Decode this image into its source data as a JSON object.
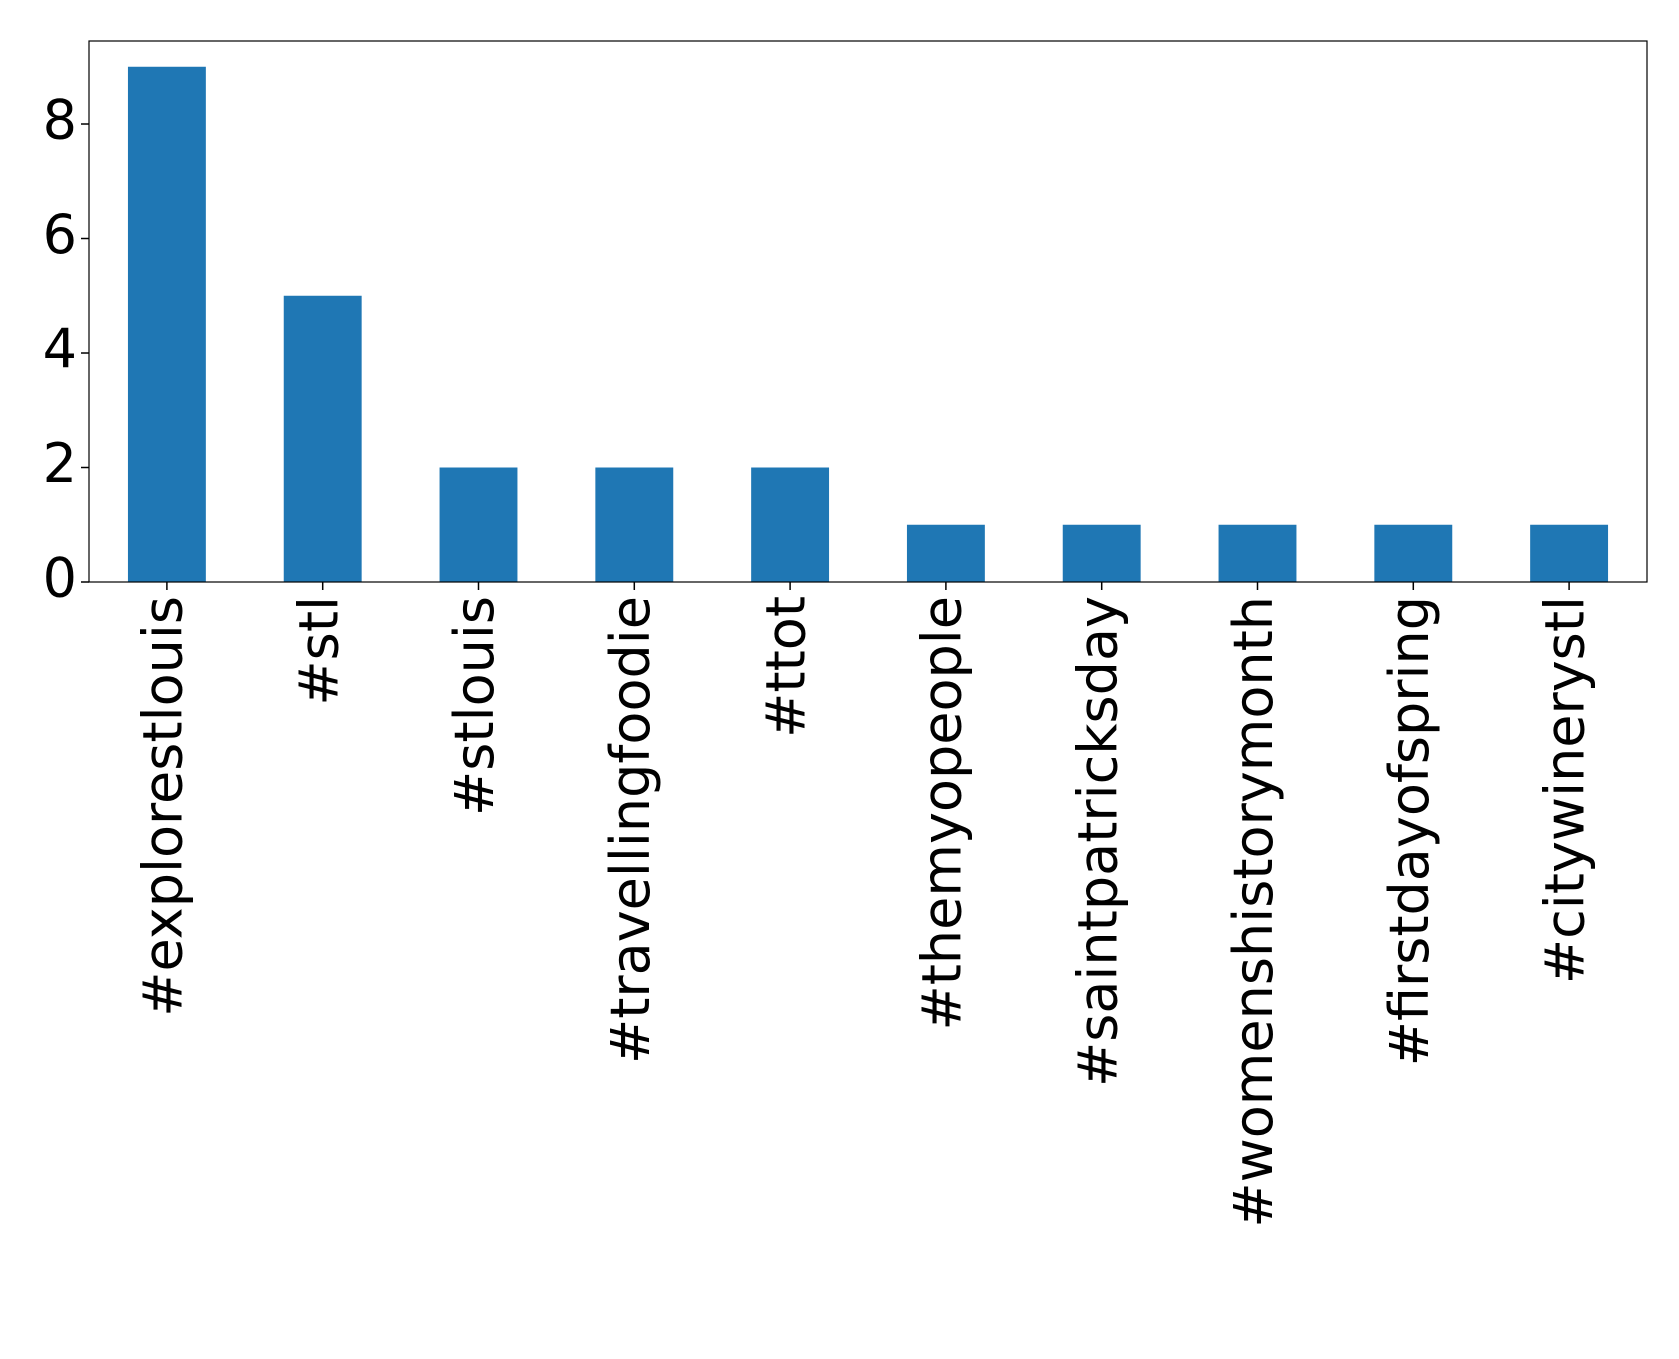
{
  "chart_data": {
    "type": "bar",
    "categories": [
      "#explorestlouis",
      "#stl",
      "#stlouis",
      "#travellingfoodie",
      "#ttot",
      "#themyopeople",
      "#saintpatricksday",
      "#womenshistorymonth",
      "#firstdayofspring",
      "#citywinerystl"
    ],
    "values": [
      9,
      5,
      2,
      2,
      2,
      1,
      1,
      1,
      1,
      1
    ],
    "color": "#1f77b4",
    "ylim": [
      0,
      9.45
    ],
    "yticks": [
      0,
      2,
      4,
      6,
      8
    ],
    "grid": false
  }
}
